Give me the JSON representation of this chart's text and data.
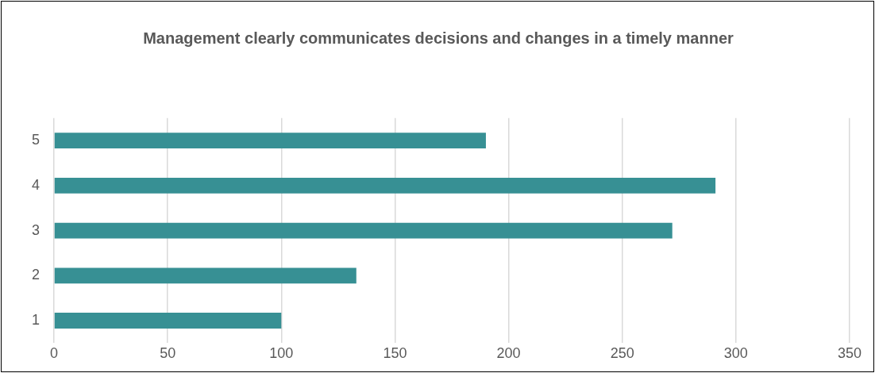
{
  "chart_data": {
    "type": "bar",
    "orientation": "horizontal",
    "title": "Management clearly communicates decisions and changes in a timely manner",
    "categories": [
      "5",
      "4",
      "3",
      "2",
      "1"
    ],
    "values": [
      190,
      291,
      272,
      133,
      100
    ],
    "color": "#379094",
    "xlim": [
      0,
      350
    ],
    "xticks": [
      0,
      50,
      100,
      150,
      200,
      250,
      300,
      350
    ],
    "grid": "x",
    "legend": false
  }
}
